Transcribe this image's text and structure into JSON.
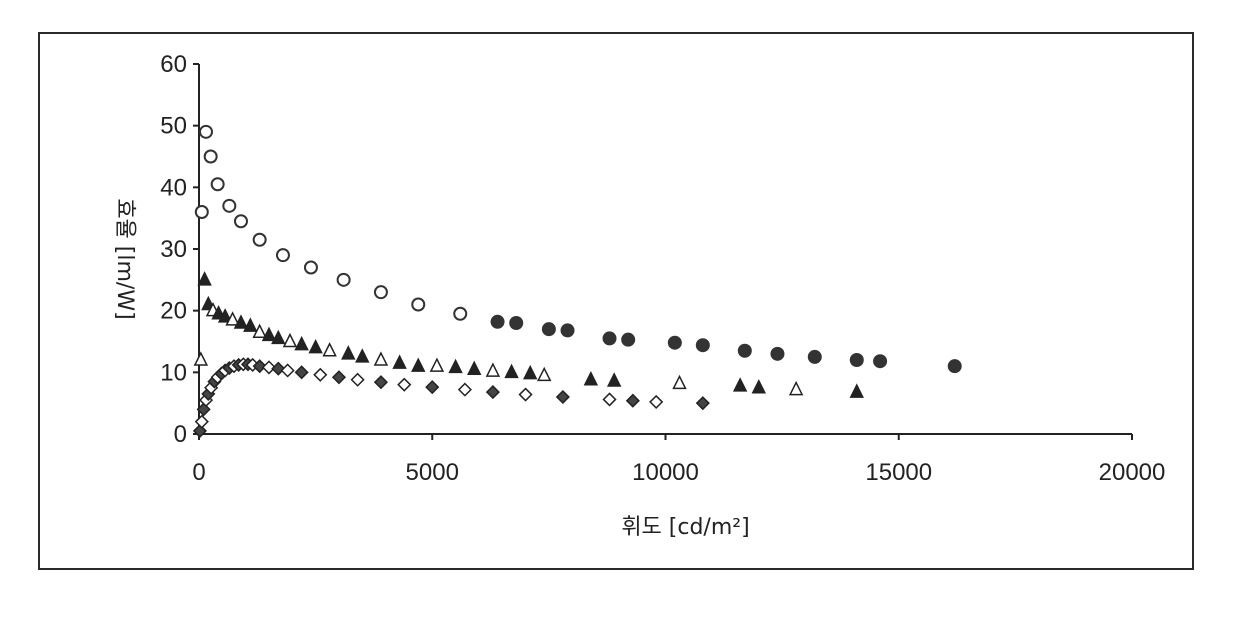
{
  "chart_data": {
    "type": "scatter",
    "xlabel": "휘도 [cd/m²]",
    "ylabel": "효율 [lm/W]",
    "xlim": [
      0,
      20000
    ],
    "ylim": [
      0,
      60
    ],
    "xticks": [
      "0",
      "5000",
      "10000",
      "15000",
      "20000"
    ],
    "yticks": [
      "0",
      "10",
      "20",
      "30",
      "40",
      "50",
      "60"
    ],
    "grid": false,
    "legend": "none",
    "series": [
      {
        "marker": "circle",
        "x": [
          60,
          150,
          250,
          400,
          650,
          900,
          1300,
          1800,
          2400,
          3100,
          3900,
          4700,
          5600,
          6400,
          6800,
          7500,
          7900,
          8800,
          9200,
          10200,
          10800,
          11700,
          12400,
          13200,
          14100,
          14600,
          16200
        ],
        "y": [
          36,
          49,
          45,
          40.5,
          37,
          34.5,
          31.5,
          29,
          27,
          25,
          23,
          21,
          19.5,
          18.2,
          18,
          17,
          16.8,
          15.5,
          15.3,
          14.8,
          14.4,
          13.5,
          13,
          12.5,
          12,
          11.8,
          11
        ]
      },
      {
        "marker": "triangle",
        "x": [
          40,
          120,
          200,
          300,
          420,
          560,
          720,
          900,
          1100,
          1300,
          1500,
          1700,
          1950,
          2200,
          2500,
          2800,
          3200,
          3500,
          3900,
          4300,
          4700,
          5100,
          5500,
          5900,
          6300,
          6700,
          7100,
          7400,
          8400,
          8900,
          10300,
          11600,
          12000,
          12800,
          14100
        ],
        "y": [
          12,
          25,
          21,
          20,
          19.5,
          19,
          18.5,
          18,
          17.5,
          16.5,
          16,
          15.5,
          15,
          14.5,
          14,
          13.5,
          13,
          12.5,
          12,
          11.5,
          11,
          11,
          10.8,
          10.5,
          10.2,
          10,
          9.8,
          9.5,
          8.8,
          8.6,
          8.2,
          7.8,
          7.5,
          7.2,
          6.8
        ]
      },
      {
        "marker": "diamond",
        "x": [
          20,
          60,
          100,
          150,
          200,
          260,
          330,
          400,
          480,
          560,
          650,
          750,
          850,
          950,
          1050,
          1150,
          1300,
          1500,
          1700,
          1900,
          2200,
          2600,
          3000,
          3400,
          3900,
          4400,
          5000,
          5700,
          6300,
          7000,
          7800,
          8800,
          9300,
          9800,
          10800
        ],
        "y": [
          0.5,
          2,
          4,
          5.5,
          6.5,
          7.5,
          8.5,
          9.2,
          9.8,
          10.3,
          10.7,
          11,
          11.2,
          11.3,
          11.3,
          11.2,
          11,
          10.8,
          10.6,
          10.3,
          10,
          9.6,
          9.2,
          8.8,
          8.4,
          8,
          7.6,
          7.2,
          6.8,
          6.4,
          6,
          5.6,
          5.4,
          5.2,
          5
        ]
      }
    ]
  }
}
